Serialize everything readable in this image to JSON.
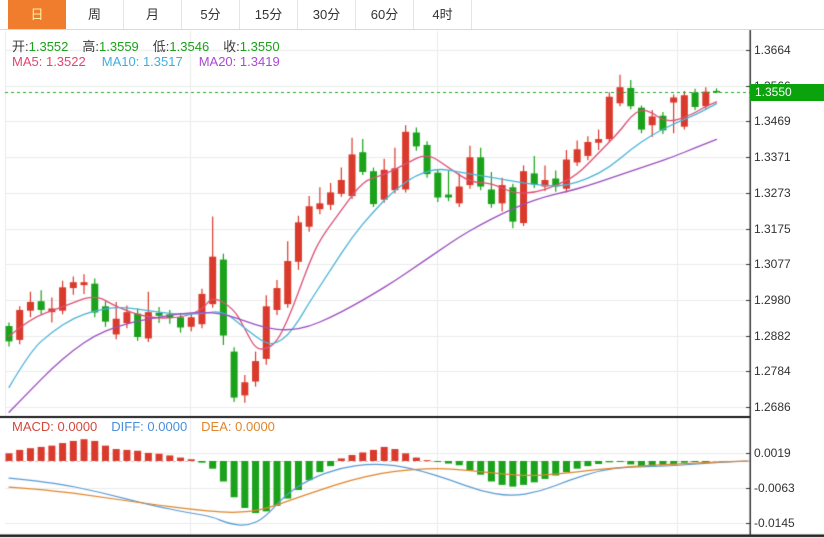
{
  "tabs": [
    {
      "label": "日",
      "active": true
    },
    {
      "label": "周",
      "active": false
    },
    {
      "label": "月",
      "active": false
    },
    {
      "label": "5分",
      "active": false
    },
    {
      "label": "15分",
      "active": false
    },
    {
      "label": "30分",
      "active": false
    },
    {
      "label": "60分",
      "active": false
    },
    {
      "label": "4时",
      "active": false
    }
  ],
  "legend": {
    "open_label": "开:",
    "open_value": "1.3552",
    "high_label": "高:",
    "high_value": "1.3559",
    "low_label": "低:",
    "low_value": "1.3546",
    "close_label": "收:",
    "close_value": "1.3550"
  },
  "ma_legend": [
    {
      "label": "MA5:",
      "value": "1.3522"
    },
    {
      "label": "MA10:",
      "value": "1.3517"
    },
    {
      "label": "MA20:",
      "value": "1.3419"
    }
  ],
  "macd_legend": [
    {
      "label": "MACD:",
      "value": "0.0000"
    },
    {
      "label": "DIFF:",
      "value": "0.0000"
    },
    {
      "label": "DEA:",
      "value": "0.0000"
    }
  ],
  "colors": {
    "up": "#d93a2c",
    "down": "#1aa21a",
    "ma5": "#dd5277",
    "ma10": "#4ab3d8",
    "ma20": "#9a4fc0",
    "diff": "#5b9bd5",
    "dea": "#e0862f",
    "tab_active": "#ef7d2d",
    "badge": "#0ba30b",
    "dotted_line": "#2aa52a",
    "grid": "#ececec",
    "axis": "#333333",
    "panel_divider": "#1a1a1a"
  },
  "chart_data": {
    "type": "candlestick",
    "legend_position": "top-left",
    "grid": true,
    "price_axis": {
      "max": 1.3664,
      "min": 1.2686,
      "ticks": [
        {
          "label": "1.3664",
          "value": 1.3664
        },
        {
          "label": "1.3566",
          "value": 1.3566
        },
        {
          "label": "1.3469",
          "value": 1.3469
        },
        {
          "label": "1.3371",
          "value": 1.3371
        },
        {
          "label": "1.3273",
          "value": 1.3273
        },
        {
          "label": "1.3175",
          "value": 1.3175
        },
        {
          "label": "1.3077",
          "value": 1.3077
        },
        {
          "label": "1.2980",
          "value": 1.298
        },
        {
          "label": "1.2882",
          "value": 1.2882
        },
        {
          "label": "1.2784",
          "value": 1.2784
        },
        {
          "label": "1.2686",
          "value": 1.2686
        }
      ]
    },
    "current_price": "1.3550",
    "current_price_value": 1.355,
    "candles": [
      [
        1.2908,
        1.2918,
        1.2852,
        1.2866
      ],
      [
        1.287,
        1.2962,
        1.2858,
        1.2952
      ],
      [
        1.295,
        1.3002,
        1.2932,
        1.2974
      ],
      [
        1.2976,
        1.3006,
        1.294,
        1.2952
      ],
      [
        1.2946,
        1.2986,
        1.2918,
        1.2956
      ],
      [
        1.295,
        1.3032,
        1.294,
        1.3014
      ],
      [
        1.3012,
        1.3044,
        1.2994,
        1.3028
      ],
      [
        1.302,
        1.305,
        1.2996,
        1.3028
      ],
      [
        1.3024,
        1.3038,
        1.2932,
        1.2945
      ],
      [
        1.2962,
        1.2976,
        1.2906,
        1.292
      ],
      [
        1.2885,
        1.2974,
        1.2872,
        1.2928
      ],
      [
        1.2916,
        1.2964,
        1.2902,
        1.2946
      ],
      [
        1.2942,
        1.2956,
        1.2868,
        1.2878
      ],
      [
        1.2874,
        1.3002,
        1.2864,
        1.2946
      ],
      [
        1.2944,
        1.296,
        1.2916,
        1.2936
      ],
      [
        1.294,
        1.2952,
        1.2914,
        1.293
      ],
      [
        1.2932,
        1.2944,
        1.289,
        1.2904
      ],
      [
        1.2906,
        1.2944,
        1.2894,
        1.2932
      ],
      [
        1.2913,
        1.301,
        1.2902,
        1.2996
      ],
      [
        1.2968,
        1.3208,
        1.2958,
        1.3098
      ],
      [
        1.309,
        1.3106,
        1.2856,
        1.2882
      ],
      [
        1.2838,
        1.285,
        1.27,
        1.2712
      ],
      [
        1.2718,
        1.2774,
        1.2698,
        1.2754
      ],
      [
        1.2756,
        1.2838,
        1.2742,
        1.2812
      ],
      [
        1.2818,
        1.2992,
        1.2802,
        1.2962
      ],
      [
        1.2952,
        1.3034,
        1.2938,
        1.3012
      ],
      [
        1.2968,
        1.314,
        1.2958,
        1.3086
      ],
      [
        1.3084,
        1.321,
        1.3062,
        1.3192
      ],
      [
        1.318,
        1.3264,
        1.3166,
        1.3236
      ],
      [
        1.3228,
        1.3288,
        1.3214,
        1.3244
      ],
      [
        1.324,
        1.33,
        1.3226,
        1.3274
      ],
      [
        1.327,
        1.3342,
        1.3262,
        1.3308
      ],
      [
        1.3264,
        1.3424,
        1.3256,
        1.3378
      ],
      [
        1.3384,
        1.342,
        1.3322,
        1.333
      ],
      [
        1.3332,
        1.3342,
        1.3234,
        1.3242
      ],
      [
        1.3254,
        1.3366,
        1.3246,
        1.3336
      ],
      [
        1.328,
        1.3396,
        1.3272,
        1.334
      ],
      [
        1.3282,
        1.3458,
        1.3274,
        1.344
      ],
      [
        1.3438,
        1.3452,
        1.3388,
        1.34
      ],
      [
        1.3404,
        1.3414,
        1.3314,
        1.3324
      ],
      [
        1.3328,
        1.3338,
        1.3248,
        1.326
      ],
      [
        1.3268,
        1.3334,
        1.325,
        1.326
      ],
      [
        1.3244,
        1.3326,
        1.3234,
        1.329
      ],
      [
        1.3294,
        1.3402,
        1.3284,
        1.337
      ],
      [
        1.337,
        1.3396,
        1.328,
        1.329
      ],
      [
        1.3282,
        1.333,
        1.3232,
        1.3242
      ],
      [
        1.3244,
        1.3314,
        1.3222,
        1.3294
      ],
      [
        1.3288,
        1.3298,
        1.3176,
        1.3194
      ],
      [
        1.319,
        1.3348,
        1.3182,
        1.3332
      ],
      [
        1.3326,
        1.3374,
        1.3286,
        1.3296
      ],
      [
        1.329,
        1.3348,
        1.3278,
        1.3308
      ],
      [
        1.3312,
        1.3334,
        1.3276,
        1.329
      ],
      [
        1.3284,
        1.339,
        1.3274,
        1.3364
      ],
      [
        1.3356,
        1.3416,
        1.3346,
        1.3392
      ],
      [
        1.3374,
        1.3428,
        1.3362,
        1.3412
      ],
      [
        1.341,
        1.3446,
        1.339,
        1.342
      ],
      [
        1.342,
        1.3548,
        1.3412,
        1.3536
      ],
      [
        1.3518,
        1.3596,
        1.351,
        1.3562
      ],
      [
        1.356,
        1.3582,
        1.3502,
        1.351
      ],
      [
        1.3506,
        1.3512,
        1.3436,
        1.3446
      ],
      [
        1.3458,
        1.35,
        1.3426,
        1.3482
      ],
      [
        1.3484,
        1.3494,
        1.3434,
        1.3444
      ],
      [
        1.352,
        1.3542,
        1.3436,
        1.3534
      ],
      [
        1.3454,
        1.3552,
        1.3446,
        1.354
      ],
      [
        1.3548,
        1.3558,
        1.35,
        1.3508
      ],
      [
        1.351,
        1.3562,
        1.3502,
        1.355
      ],
      [
        1.3552,
        1.3559,
        1.3546,
        1.355
      ]
    ],
    "ma5": [
      [
        0,
        1.288
      ],
      [
        2,
        1.293
      ],
      [
        5,
        1.296
      ],
      [
        8,
        1.2995
      ],
      [
        10,
        1.296
      ],
      [
        13,
        1.293
      ],
      [
        16,
        1.293
      ],
      [
        18,
        1.2952
      ],
      [
        19,
        1.299
      ],
      [
        21,
        1.2955
      ],
      [
        22,
        1.29
      ],
      [
        23,
        1.2845
      ],
      [
        24,
        1.2845
      ],
      [
        25,
        1.2865
      ],
      [
        26,
        1.2925
      ],
      [
        27,
        1.3
      ],
      [
        28,
        1.308
      ],
      [
        29,
        1.3145
      ],
      [
        31,
        1.3225
      ],
      [
        33,
        1.3305
      ],
      [
        35,
        1.3322
      ],
      [
        37,
        1.3352
      ],
      [
        39,
        1.3382
      ],
      [
        41,
        1.3342
      ],
      [
        43,
        1.3302
      ],
      [
        45,
        1.33
      ],
      [
        47,
        1.3272
      ],
      [
        49,
        1.3272
      ],
      [
        51,
        1.3292
      ],
      [
        53,
        1.3322
      ],
      [
        55,
        1.3382
      ],
      [
        57,
        1.3442
      ],
      [
        58,
        1.3482
      ],
      [
        59,
        1.3502
      ],
      [
        60,
        1.3492
      ],
      [
        61,
        1.3472
      ],
      [
        62,
        1.347
      ],
      [
        63,
        1.348
      ],
      [
        64,
        1.3492
      ],
      [
        65,
        1.351
      ],
      [
        66,
        1.3522
      ]
    ],
    "ma10": [
      [
        0,
        1.274
      ],
      [
        2,
        1.284
      ],
      [
        4,
        1.2892
      ],
      [
        6,
        1.293
      ],
      [
        8,
        1.295
      ],
      [
        10,
        1.296
      ],
      [
        12,
        1.2955
      ],
      [
        14,
        1.2945
      ],
      [
        16,
        1.294
      ],
      [
        18,
        1.2942
      ],
      [
        20,
        1.295
      ],
      [
        22,
        1.2902
      ],
      [
        24,
        1.2858
      ],
      [
        25,
        1.2862
      ],
      [
        26,
        1.2882
      ],
      [
        27,
        1.2922
      ],
      [
        28,
        1.2972
      ],
      [
        30,
        1.3062
      ],
      [
        32,
        1.3152
      ],
      [
        34,
        1.3222
      ],
      [
        36,
        1.3282
      ],
      [
        38,
        1.3322
      ],
      [
        40,
        1.334
      ],
      [
        42,
        1.333
      ],
      [
        44,
        1.332
      ],
      [
        46,
        1.331
      ],
      [
        48,
        1.33
      ],
      [
        50,
        1.3292
      ],
      [
        52,
        1.3292
      ],
      [
        54,
        1.3312
      ],
      [
        56,
        1.3342
      ],
      [
        58,
        1.3392
      ],
      [
        60,
        1.3432
      ],
      [
        62,
        1.3462
      ],
      [
        64,
        1.3486
      ],
      [
        66,
        1.3517
      ]
    ],
    "ma20": [
      [
        0,
        1.2672
      ],
      [
        2,
        1.2732
      ],
      [
        4,
        1.2792
      ],
      [
        6,
        1.2842
      ],
      [
        8,
        1.2882
      ],
      [
        10,
        1.2906
      ],
      [
        12,
        1.2922
      ],
      [
        14,
        1.2932
      ],
      [
        16,
        1.2942
      ],
      [
        18,
        1.2946
      ],
      [
        20,
        1.2942
      ],
      [
        22,
        1.2922
      ],
      [
        24,
        1.2902
      ],
      [
        26,
        1.2896
      ],
      [
        28,
        1.2906
      ],
      [
        30,
        1.2932
      ],
      [
        32,
        1.2962
      ],
      [
        34,
        1.2996
      ],
      [
        36,
        1.3032
      ],
      [
        38,
        1.3072
      ],
      [
        40,
        1.3112
      ],
      [
        42,
        1.3152
      ],
      [
        44,
        1.3186
      ],
      [
        46,
        1.3216
      ],
      [
        48,
        1.3242
      ],
      [
        50,
        1.3262
      ],
      [
        52,
        1.3276
      ],
      [
        54,
        1.3292
      ],
      [
        56,
        1.3312
      ],
      [
        58,
        1.3332
      ],
      [
        60,
        1.3352
      ],
      [
        62,
        1.3372
      ],
      [
        64,
        1.3396
      ],
      [
        66,
        1.3419
      ]
    ],
    "macd": {
      "axis_ticks": [
        {
          "label": "0.0019",
          "value": 0.0019
        },
        {
          "label": "-0.0063",
          "value": -0.0063
        },
        {
          "label": "-0.0145",
          "value": -0.0145
        }
      ],
      "histogram": [
        0.0018,
        0.0026,
        0.003,
        0.0033,
        0.0036,
        0.0042,
        0.0047,
        0.0051,
        0.0047,
        0.0036,
        0.0028,
        0.0026,
        0.0024,
        0.0019,
        0.0017,
        0.0013,
        0.0008,
        0.0004,
        -0.0004,
        -0.0018,
        -0.0048,
        -0.0085,
        -0.011,
        -0.0122,
        -0.0118,
        -0.0105,
        -0.0088,
        -0.0068,
        -0.0045,
        -0.0026,
        -0.0012,
        0.0006,
        0.0014,
        0.002,
        0.0026,
        0.0033,
        0.0028,
        0.0018,
        0.0008,
        0.0002,
        -0.0002,
        -0.0006,
        -0.001,
        -0.0022,
        -0.0032,
        -0.0048,
        -0.0056,
        -0.006,
        -0.0056,
        -0.005,
        -0.0042,
        -0.0034,
        -0.0026,
        -0.0018,
        -0.0012,
        -0.0007,
        -0.0003,
        -0.0001,
        -0.0008,
        -0.0012,
        -0.0012,
        -0.001,
        -0.0008,
        -0.0004,
        -0.0002,
        -0.0001,
        0.0
      ],
      "diff": [
        [
          9,
          -0.004
        ],
        [
          50,
          -0.0049
        ],
        [
          100,
          -0.0073
        ],
        [
          150,
          -0.0103
        ],
        [
          190,
          -0.0122
        ],
        [
          212,
          -0.013
        ],
        [
          228,
          -0.0147
        ],
        [
          248,
          -0.0152
        ],
        [
          265,
          -0.0133
        ],
        [
          285,
          -0.008
        ],
        [
          310,
          -0.0042
        ],
        [
          340,
          -0.0016
        ],
        [
          370,
          -0.0007
        ],
        [
          395,
          -0.001
        ],
        [
          420,
          -0.0022
        ],
        [
          450,
          -0.0044
        ],
        [
          480,
          -0.007
        ],
        [
          510,
          -0.0083
        ],
        [
          540,
          -0.0072
        ],
        [
          570,
          -0.0044
        ],
        [
          600,
          -0.0022
        ],
        [
          630,
          -0.0013
        ],
        [
          660,
          -0.0013
        ],
        [
          690,
          -0.0008
        ],
        [
          720,
          -0.0003
        ],
        [
          748,
          0.0
        ]
      ],
      "dea": [
        [
          9,
          -0.0061
        ],
        [
          50,
          -0.0068
        ],
        [
          100,
          -0.0084
        ],
        [
          150,
          -0.0101
        ],
        [
          190,
          -0.0113
        ],
        [
          225,
          -0.0121
        ],
        [
          250,
          -0.0119
        ],
        [
          270,
          -0.0109
        ],
        [
          290,
          -0.0092
        ],
        [
          320,
          -0.0068
        ],
        [
          350,
          -0.0045
        ],
        [
          380,
          -0.0029
        ],
        [
          410,
          -0.002
        ],
        [
          440,
          -0.0017
        ],
        [
          470,
          -0.0022
        ],
        [
          500,
          -0.003
        ],
        [
          530,
          -0.0035
        ],
        [
          560,
          -0.003
        ],
        [
          590,
          -0.0022
        ],
        [
          620,
          -0.0015
        ],
        [
          650,
          -0.001
        ],
        [
          680,
          -0.0007
        ],
        [
          710,
          -0.0003
        ],
        [
          748,
          0.0
        ]
      ]
    }
  }
}
